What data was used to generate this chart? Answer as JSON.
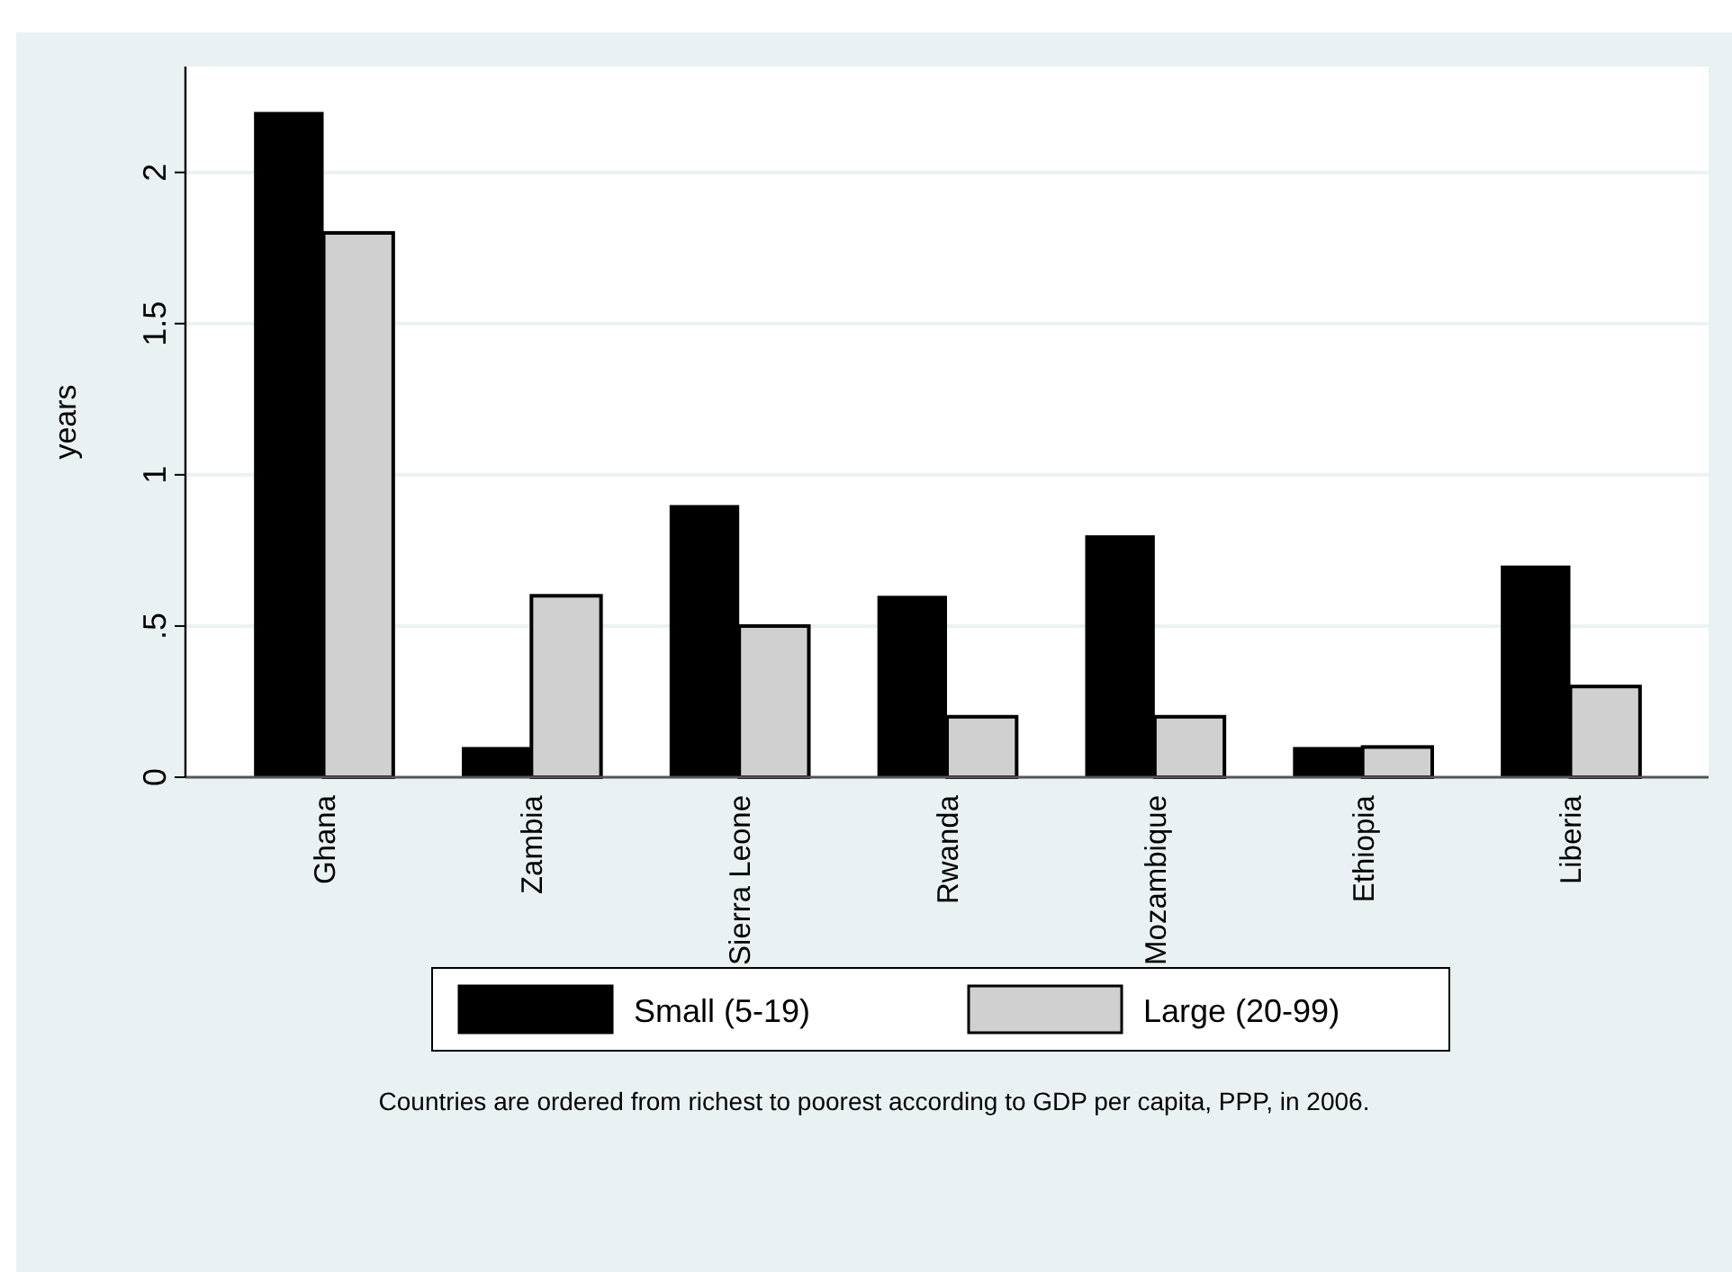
{
  "chart_data": {
    "type": "bar",
    "ylabel": "years",
    "categories": [
      "Ghana",
      "Zambia",
      "Sierra Leone",
      "Rwanda",
      "Mozambique",
      "Ethiopia",
      "Liberia"
    ],
    "series": [
      {
        "name": "Small (5-19)",
        "color": "#000000",
        "values": [
          2.2,
          0.1,
          0.9,
          0.6,
          0.8,
          0.1,
          0.7
        ]
      },
      {
        "name": "Large (20-99)",
        "color": "#d0d0d0",
        "values": [
          1.8,
          0.6,
          0.5,
          0.2,
          0.2,
          0.1,
          0.3
        ]
      }
    ],
    "ylim": [
      0,
      2.35
    ],
    "yticks": [
      0,
      {
        "value": 0.5,
        "label": ".5"
      },
      {
        "value": 1,
        "label": "1"
      },
      {
        "value": 1.5,
        "label": "1.5"
      },
      {
        "value": 2,
        "label": "2"
      }
    ],
    "grid": "y",
    "legend": "bottom",
    "annotations": [
      "Countries are ordered from richest to poorest according to GDP per capita, PPP, in 2006."
    ]
  }
}
